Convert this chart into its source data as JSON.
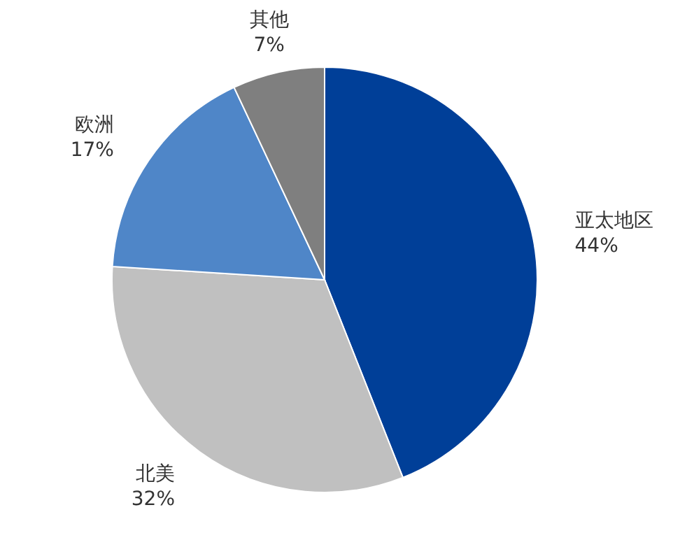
{
  "chart_data": {
    "type": "pie",
    "categories": [
      "亚太地区",
      "北美",
      "欧洲",
      "其他"
    ],
    "values": [
      44,
      32,
      17,
      7
    ],
    "colors": [
      "#003f98",
      "#c0c0c0",
      "#4f86c8",
      "#7f7f7f"
    ],
    "value_labels": [
      "44%",
      "32%",
      "17%",
      "7%"
    ]
  }
}
